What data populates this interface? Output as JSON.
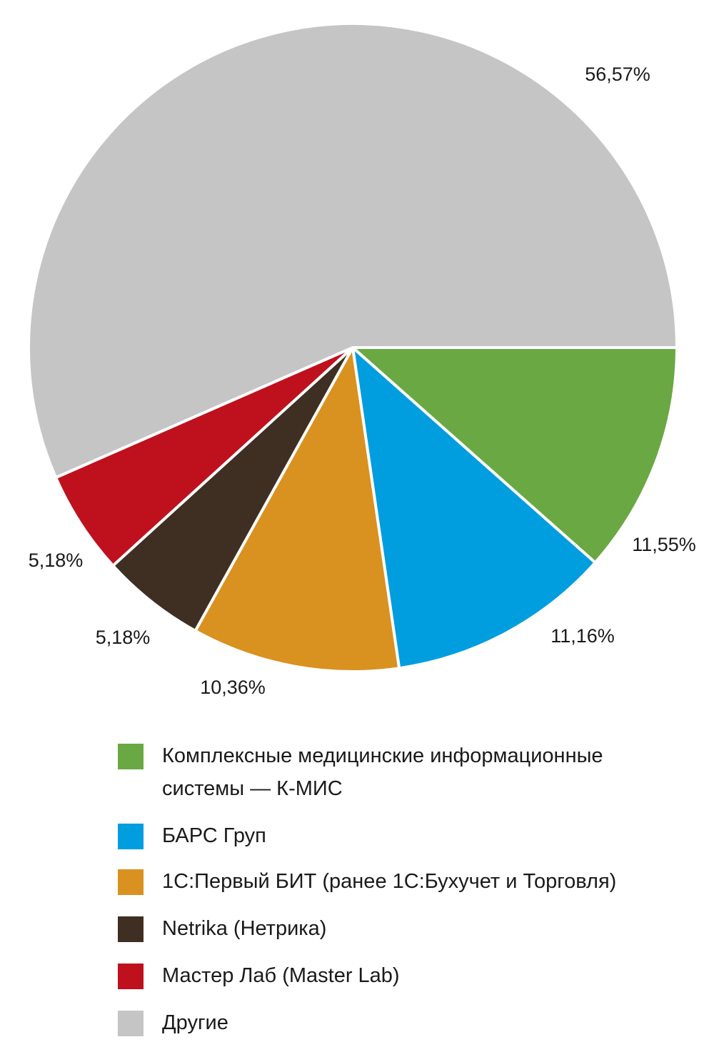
{
  "chart_data": {
    "type": "pie",
    "slices": [
      {
        "name": "Комплексные медицинские информационные системы — К-МИС",
        "value": 11.55,
        "label": "11,55%",
        "color": "#6aa843"
      },
      {
        "name": "БАРС Груп",
        "value": 11.16,
        "label": "11,16%",
        "color": "#009ddf"
      },
      {
        "name": "1С:Первый БИТ (ранее 1С:Бухучет и Торговля)",
        "value": 10.36,
        "label": "10,36%",
        "color": "#d9911f"
      },
      {
        "name": "Netrika (Нетрика)",
        "value": 5.18,
        "label": "5,18%",
        "color": "#3f2e22"
      },
      {
        "name": "Мастер Лаб (Master Lab)",
        "value": 5.18,
        "label": "5,18%",
        "color": "#bf111d"
      },
      {
        "name": "Другие",
        "value": 56.57,
        "label": "56,57%",
        "color": "#c5c5c5"
      }
    ],
    "legend_position": "bottom",
    "grid": false
  }
}
